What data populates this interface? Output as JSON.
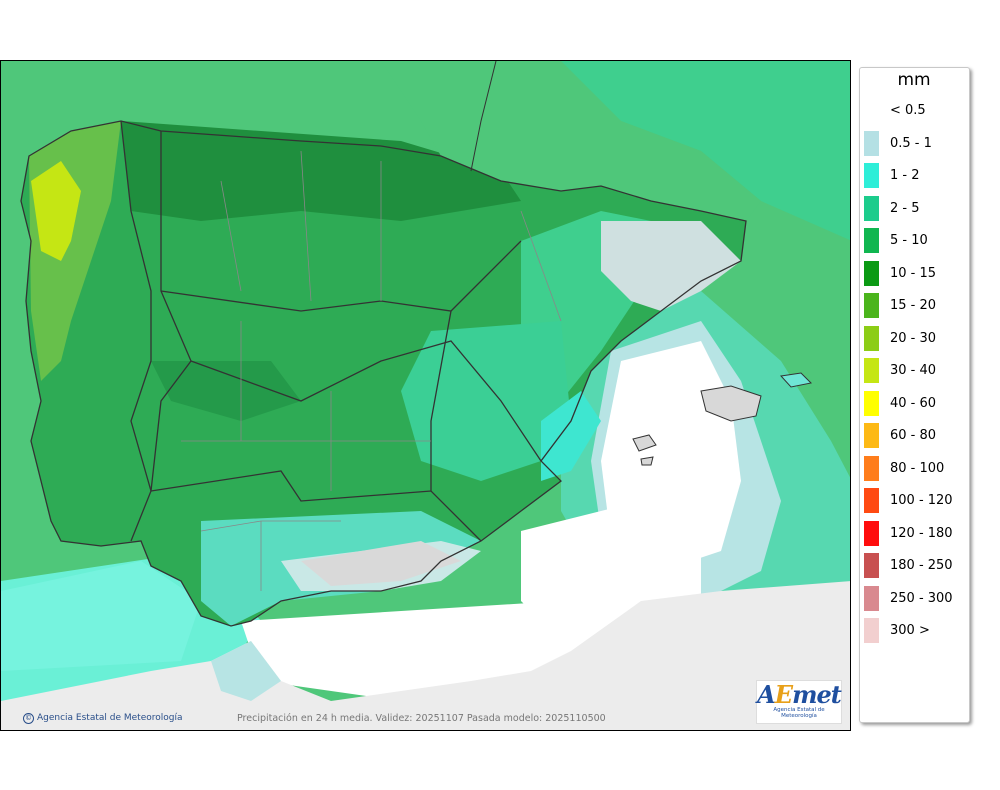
{
  "legend": {
    "unit": "mm",
    "items": [
      {
        "label": "< 0.5",
        "color": "#ffffff"
      },
      {
        "label": "0.5 - 1",
        "color": "#b4e0e4"
      },
      {
        "label": "1 - 2",
        "color": "#2eeed8"
      },
      {
        "label": "2 - 5",
        "color": "#1ccc8c"
      },
      {
        "label": "5 - 10",
        "color": "#10b650"
      },
      {
        "label": "10 - 15",
        "color": "#0b9a14"
      },
      {
        "label": "15 - 20",
        "color": "#4bb51c"
      },
      {
        "label": "20 - 30",
        "color": "#8ccd16"
      },
      {
        "label": "30 - 40",
        "color": "#c5e614"
      },
      {
        "label": "40 - 60",
        "color": "#ffff00"
      },
      {
        "label": "60 - 80",
        "color": "#fdb915"
      },
      {
        "label": "80 - 100",
        "color": "#ff7d1b"
      },
      {
        "label": "100 - 120",
        "color": "#ff4a12"
      },
      {
        "label": "120 - 180",
        "color": "#ff0d0d"
      },
      {
        "label": "180 - 250",
        "color": "#c85050"
      },
      {
        "label": "250 - 300",
        "color": "#d9898f"
      },
      {
        "label": "300 >",
        "color": "#f2cfcf"
      }
    ]
  },
  "footer": {
    "copyright": "Agencia Estatal de Meteorología",
    "validity": "Precipitación en 24 h media. Validez: 20251107 Pasada modelo: 2025110500"
  },
  "logo": {
    "text_a": "A",
    "text_e": "E",
    "text_met": "met",
    "subtitle": "Agencia Estatal de Meteorología"
  },
  "map": {
    "sea_color": "#4fc77a",
    "land_color": "#2eab55",
    "africa_color": "#ececec"
  }
}
